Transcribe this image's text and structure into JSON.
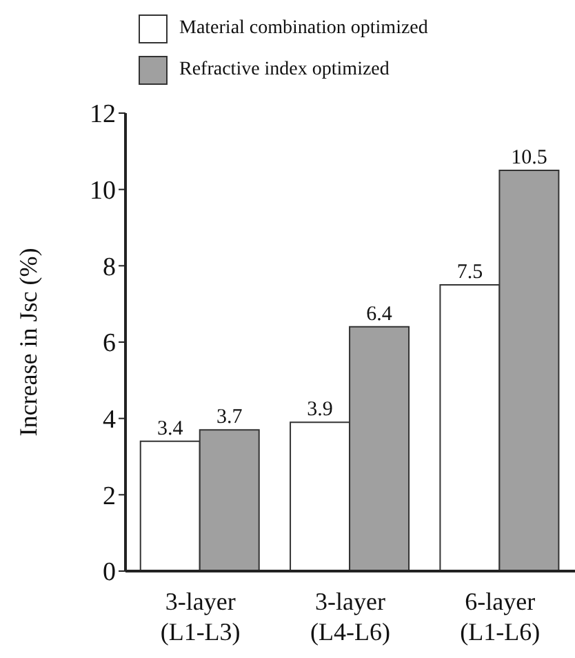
{
  "chart_data": {
    "type": "bar",
    "ylabel": "Increase in Jsc (%)",
    "categories": [
      "3-layer\n(L1-L3)",
      "3-layer\n(L4-L6)",
      "6-layer\n(L1-L6)"
    ],
    "series": [
      {
        "name": "Material combination optimized",
        "color": "#ffffff",
        "values": [
          3.4,
          3.9,
          7.5
        ]
      },
      {
        "name": "Refractive index optimized",
        "color": "#a0a0a0",
        "values": [
          3.7,
          6.4,
          10.5
        ]
      }
    ],
    "ylim": [
      0,
      12
    ],
    "yticks": [
      0,
      2,
      4,
      6,
      8,
      10,
      12
    ],
    "data_labels": true,
    "legend": "top",
    "grid": false
  }
}
